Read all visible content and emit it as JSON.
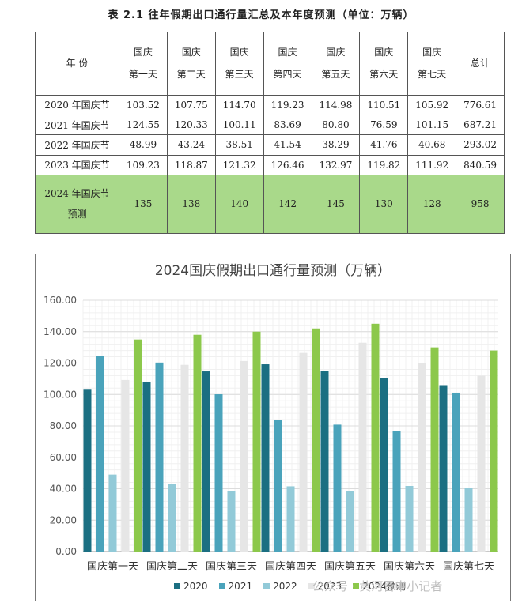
{
  "table": {
    "title": "表 2.1  往年假期出口通行量汇总及本年度预测（单位：万辆）",
    "header_year": "年  份",
    "header_days": [
      [
        "国庆",
        "第一天"
      ],
      [
        "国庆",
        "第二天"
      ],
      [
        "国庆",
        "第三天"
      ],
      [
        "国庆",
        "第四天"
      ],
      [
        "国庆",
        "第五天"
      ],
      [
        "国庆",
        "第六天"
      ],
      [
        "国庆",
        "第七天"
      ]
    ],
    "header_total": "总计",
    "rows": [
      {
        "label": "2020 年国庆节",
        "values": [
          "103.52",
          "107.75",
          "114.70",
          "119.23",
          "114.98",
          "110.51",
          "105.92"
        ],
        "total": "776.61"
      },
      {
        "label": "2021 年国庆节",
        "values": [
          "124.55",
          "120.33",
          "100.11",
          "83.69",
          "80.80",
          "76.59",
          "101.15"
        ],
        "total": "687.21"
      },
      {
        "label": "2022 年国庆节",
        "values": [
          "48.99",
          "43.24",
          "38.51",
          "41.54",
          "38.29",
          "41.76",
          "40.68"
        ],
        "total": "293.02"
      },
      {
        "label": "2023 年国庆节",
        "values": [
          "109.23",
          "118.87",
          "121.32",
          "126.46",
          "132.97",
          "119.82",
          "111.92"
        ],
        "total": "840.59"
      }
    ],
    "forecast_row": {
      "label1": "2024 年国庆节",
      "label2": "预测",
      "values": [
        "135",
        "138",
        "140",
        "142",
        "145",
        "130",
        "128"
      ],
      "total": "958"
    }
  },
  "chart_data": {
    "type": "bar",
    "title": "2024国庆假期出口通行量预测（万辆）",
    "categories": [
      "国庆第一天",
      "国庆第二天",
      "国庆第三天",
      "国庆第四天",
      "国庆第五天",
      "国庆第六天",
      "国庆第七天"
    ],
    "series": [
      {
        "name": "2020",
        "color": "#1b6f82",
        "values": [
          103.52,
          107.75,
          114.7,
          119.23,
          114.98,
          110.51,
          105.92
        ]
      },
      {
        "name": "2021",
        "color": "#4aa3bb",
        "values": [
          124.55,
          120.33,
          100.11,
          83.69,
          80.8,
          76.59,
          101.15
        ]
      },
      {
        "name": "2022",
        "color": "#92cad8",
        "values": [
          48.99,
          43.24,
          38.51,
          41.54,
          38.29,
          41.76,
          40.68
        ]
      },
      {
        "name": "2023",
        "color": "#e6e6e6",
        "values": [
          109.23,
          118.87,
          121.32,
          126.46,
          132.97,
          119.82,
          111.92
        ]
      },
      {
        "name": "2024预测",
        "color": "#8cc84b",
        "values": [
          135,
          138,
          140,
          142,
          145,
          130,
          128
        ]
      }
    ],
    "ylim": [
      0,
      160
    ],
    "yticks": [
      "0.00",
      "20.00",
      "40.00",
      "60.00",
      "80.00",
      "100.00",
      "120.00",
      "140.00",
      "160.00"
    ],
    "grid": true,
    "legend_position": "bottom"
  },
  "watermark": "公众号 · 黄河晋中小记者"
}
